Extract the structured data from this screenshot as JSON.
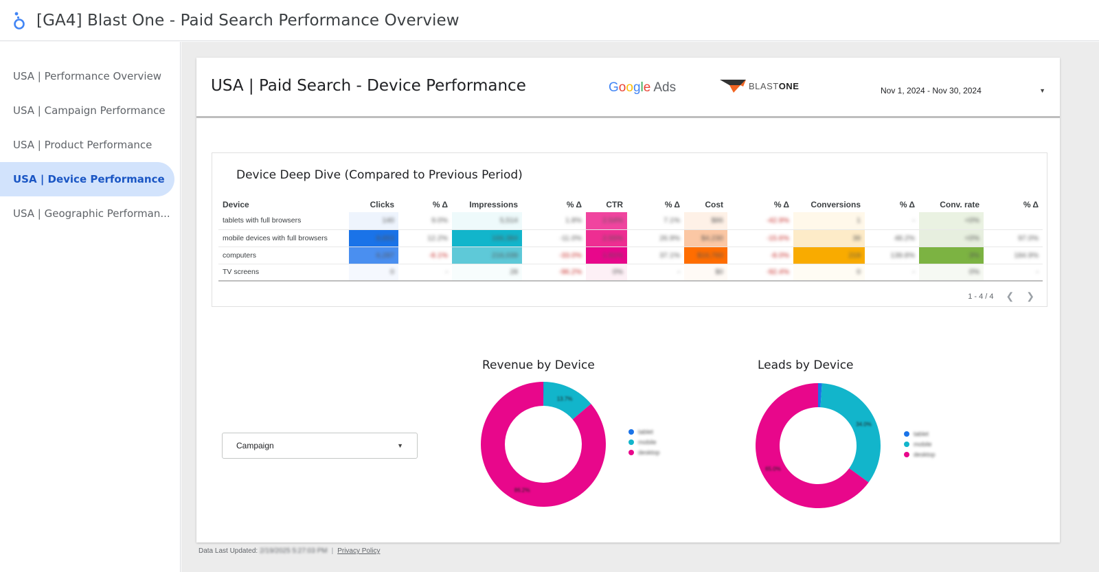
{
  "app": {
    "title": "[GA4] Blast One - Paid Search Performance Overview",
    "logo_icon": "looker-studio-icon"
  },
  "sidebar": {
    "items": [
      {
        "label": "USA | Performance Overview",
        "active": false
      },
      {
        "label": "USA | Campaign Performance",
        "active": false
      },
      {
        "label": "USA | Product Performance",
        "active": false
      },
      {
        "label": "USA | Device Performance",
        "active": true
      },
      {
        "label": "USA | Geographic Performan...",
        "active": false
      }
    ]
  },
  "page": {
    "title": "USA | Paid Search - Device Performance",
    "google_ads_logo": {
      "google": [
        "G",
        "o",
        "o",
        "g",
        "l",
        "e"
      ],
      "ads": "Ads"
    },
    "blast_logo": {
      "prefix": "BLAST",
      "suffix": "ONE"
    },
    "date_range": "Nov 1, 2024 - Nov 30, 2024"
  },
  "table": {
    "title": "Device Deep Dive (Compared to Previous Period)",
    "headers": [
      "Device",
      "Clicks",
      "% Δ",
      "Impressions",
      "% Δ",
      "CTR",
      "% Δ",
      "Cost",
      "% Δ",
      "Conversions",
      "% Δ",
      "Conv. rate",
      "% Δ"
    ],
    "rows": [
      {
        "device": "tablets with full browsers",
        "cells": [
          "140",
          "9.0%",
          "5,514",
          "1.8%",
          "2.54%",
          "7.1%",
          "$86",
          "-42.9%",
          "1",
          "-",
          "<0%",
          ""
        ]
      },
      {
        "device": "mobile devices with full browsers",
        "cells": [
          "8,653",
          "12.2%",
          "166,384",
          "-11.0%",
          "2.55%",
          "26.9%",
          "$4,230",
          "-15.6%",
          "39",
          "48.2%",
          "<0%",
          "97.0%"
        ]
      },
      {
        "device": "computers",
        "cells": [
          "6,287",
          "-8.1%",
          "216,039",
          "-33.0%",
          "1.91%",
          "37.1%",
          "$16,760",
          "-8.0%",
          "219",
          "139.8%",
          "3%",
          "184.9%"
        ]
      },
      {
        "device": "TV screens",
        "cells": [
          "0",
          "-",
          "28",
          "-96.2%",
          "0%",
          "-",
          "$0",
          "-92.4%",
          "0",
          "-",
          "0%",
          "-"
        ]
      }
    ],
    "pager": {
      "label": "1 - 4 / 4",
      "prev_icon": "chevron-left-icon",
      "next_icon": "chevron-right-icon"
    }
  },
  "filter": {
    "label": "Campaign",
    "icon": "caret-down-icon"
  },
  "revenue_chart": {
    "title": "Revenue by Device",
    "legend": [
      "tablet",
      "mobile",
      "desktop"
    ]
  },
  "leads_chart": {
    "title": "Leads by Device",
    "legend": [
      "tablet",
      "mobile",
      "desktop"
    ]
  },
  "chart_data": [
    {
      "type": "pie",
      "title": "Revenue by Device",
      "categories": [
        "tablet",
        "mobile",
        "desktop"
      ],
      "values": [
        0.1,
        13.7,
        86.2
      ],
      "colors": [
        "#1a73e8",
        "#12b5cb",
        "#e8078b"
      ],
      "labels": [
        "",
        "13.7%",
        "86.2%"
      ]
    },
    {
      "type": "pie",
      "title": "Leads by Device",
      "categories": [
        "tablet",
        "mobile",
        "desktop"
      ],
      "values": [
        1.0,
        34.0,
        65.0
      ],
      "colors": [
        "#1a73e8",
        "#12b5cb",
        "#e8078b"
      ],
      "labels": [
        "",
        "34.0%",
        "65.0%"
      ]
    }
  ],
  "colors": {
    "accent": "#1a56c4",
    "clicks_high": "#1a73e8",
    "impressions_high": "#12b5cb",
    "ctr_high": "#e8078b",
    "cost_high": "#ff6d00",
    "conversions_high": "#f9ab00",
    "conv_rate_high": "#7cb342"
  },
  "footer": {
    "label": "Data Last Updated:",
    "timestamp": "2/19/2025 5:27:03 PM",
    "privacy": "Privacy Policy"
  }
}
